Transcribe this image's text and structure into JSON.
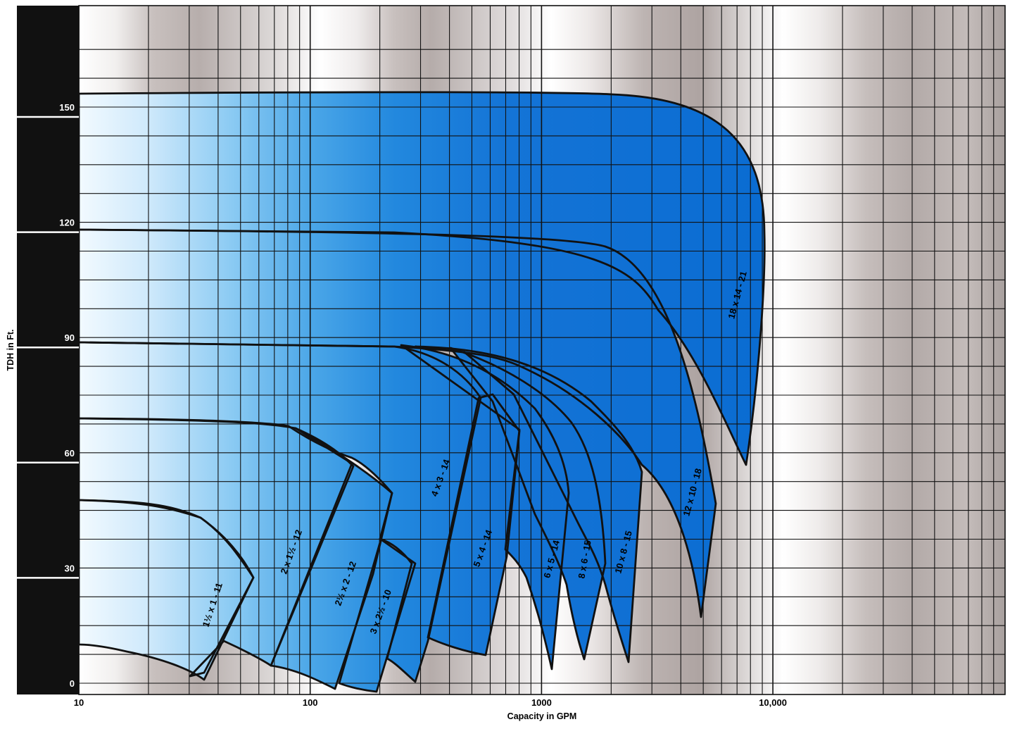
{
  "chart_data": {
    "type": "area",
    "xlabel": "Capacity in GPM",
    "ylabel": "TDH in Ft.",
    "x_scale": "log",
    "xlim": [
      10,
      10000
    ],
    "grid": true,
    "x_ticks": [
      {
        "value": 10,
        "label": "10"
      },
      {
        "value": 100,
        "label": "100"
      },
      {
        "value": 1000,
        "label": "1000"
      },
      {
        "value": 10000,
        "label": "10,000"
      }
    ],
    "y_ticks": [
      {
        "value": 0,
        "label": "0"
      },
      {
        "value": 30,
        "label": "30"
      },
      {
        "value": 60,
        "label": "60"
      },
      {
        "value": 90,
        "label": "90"
      },
      {
        "value": 120,
        "label": "120"
      },
      {
        "value": 150,
        "label": "150"
      }
    ],
    "colors": {
      "band_dark": "#111111",
      "grid": "#111111",
      "fill_light": "#f2faff",
      "fill_mid": "#57b0ec",
      "fill_dark": "#0a6cd2",
      "bg_light": "#ffffff",
      "bg_dark": "#b2a8a6"
    },
    "series": [
      {
        "name": "18 x 14 - 21"
      },
      {
        "name": "12 x 10 - 18"
      },
      {
        "name": "10 x 8 - 15"
      },
      {
        "name": "8 x 6 - 15"
      },
      {
        "name": "6 x 5 - 14"
      },
      {
        "name": "5 x 4 - 14"
      },
      {
        "name": "4 x 3 - 14"
      },
      {
        "name": "3 x 2½ - 10"
      },
      {
        "name": "2½ x 2 - 12"
      },
      {
        "name": "2 x 1½ - 12"
      },
      {
        "name": "1½ x 1 - 11"
      }
    ]
  }
}
